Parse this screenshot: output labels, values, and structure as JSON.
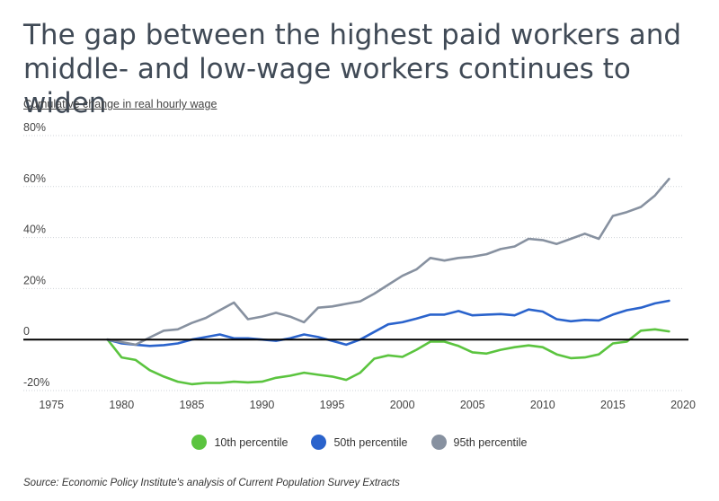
{
  "chart_data": {
    "type": "line",
    "title": "The gap between the highest paid workers and middle- and low-wage workers continues to widen",
    "ylabel": "Cumulative change in real hourly wage",
    "source": "Source:  Economic Policy Institute's analysis of Current Population Survey Extracts",
    "xlim": [
      1973,
      2020
    ],
    "ylim": [
      -20,
      80
    ],
    "x_ticks": [
      1975,
      1980,
      1985,
      1990,
      1995,
      2000,
      2005,
      2010,
      2015,
      2020
    ],
    "y_ticks": [
      -20,
      0,
      20,
      40,
      60,
      80
    ],
    "y_tick_labels": [
      "-20%",
      "0",
      "20%",
      "40%",
      "60%",
      "80%"
    ],
    "grid": "horizontal",
    "legend_position": "bottom",
    "zero_line": true,
    "x": [
      1979,
      1980,
      1981,
      1982,
      1983,
      1984,
      1985,
      1986,
      1987,
      1988,
      1989,
      1990,
      1991,
      1992,
      1993,
      1994,
      1995,
      1996,
      1997,
      1998,
      1999,
      2000,
      2001,
      2002,
      2003,
      2004,
      2005,
      2006,
      2007,
      2008,
      2009,
      2010,
      2011,
      2012,
      2013,
      2014,
      2015,
      2016,
      2017,
      2018,
      2019
    ],
    "series": [
      {
        "name": "10th percentile",
        "color": "#5bc43f",
        "values": [
          0,
          -7,
          -8,
          -12,
          -14.5,
          -16.5,
          -17.5,
          -17,
          -17,
          -16.5,
          -16.8,
          -16.5,
          -15,
          -14.2,
          -13,
          -13.8,
          -14.5,
          -15.8,
          -13,
          -7.5,
          -6.2,
          -6.8,
          -4,
          -0.8,
          -0.8,
          -2.5,
          -5,
          -5.5,
          -4,
          -3,
          -2.3,
          -3,
          -5.8,
          -7.3,
          -7,
          -5.8,
          -1.5,
          -0.8,
          3.5,
          4,
          3.2
        ]
      },
      {
        "name": "50th percentile",
        "color": "#2a63cc",
        "values": [
          0,
          -1.5,
          -2,
          -2.5,
          -2.2,
          -1.5,
          0,
          1,
          2,
          0.5,
          0.5,
          0,
          -0.5,
          0.5,
          2,
          1,
          -0.5,
          -2,
          0,
          3,
          6,
          6.8,
          8.2,
          9.8,
          9.8,
          11.2,
          9.5,
          9.8,
          10,
          9.5,
          11.8,
          11,
          8,
          7.2,
          7.7,
          7.5,
          9.8,
          11.5,
          12.5,
          14.2,
          15.2
        ]
      },
      {
        "name": "95th percentile",
        "color": "#8791a0",
        "values": [
          0,
          -1,
          -2,
          0.8,
          3.5,
          4,
          6.5,
          8.5,
          11.5,
          14.5,
          8,
          9,
          10.5,
          9,
          6.8,
          12.5,
          13,
          14,
          15,
          18,
          21.5,
          25,
          27.5,
          32,
          31,
          32,
          32.5,
          33.5,
          35.5,
          36.5,
          39.5,
          39,
          37.5,
          39.5,
          41.5,
          39.5,
          48.5,
          50,
          52,
          56.5,
          63
        ]
      }
    ]
  }
}
